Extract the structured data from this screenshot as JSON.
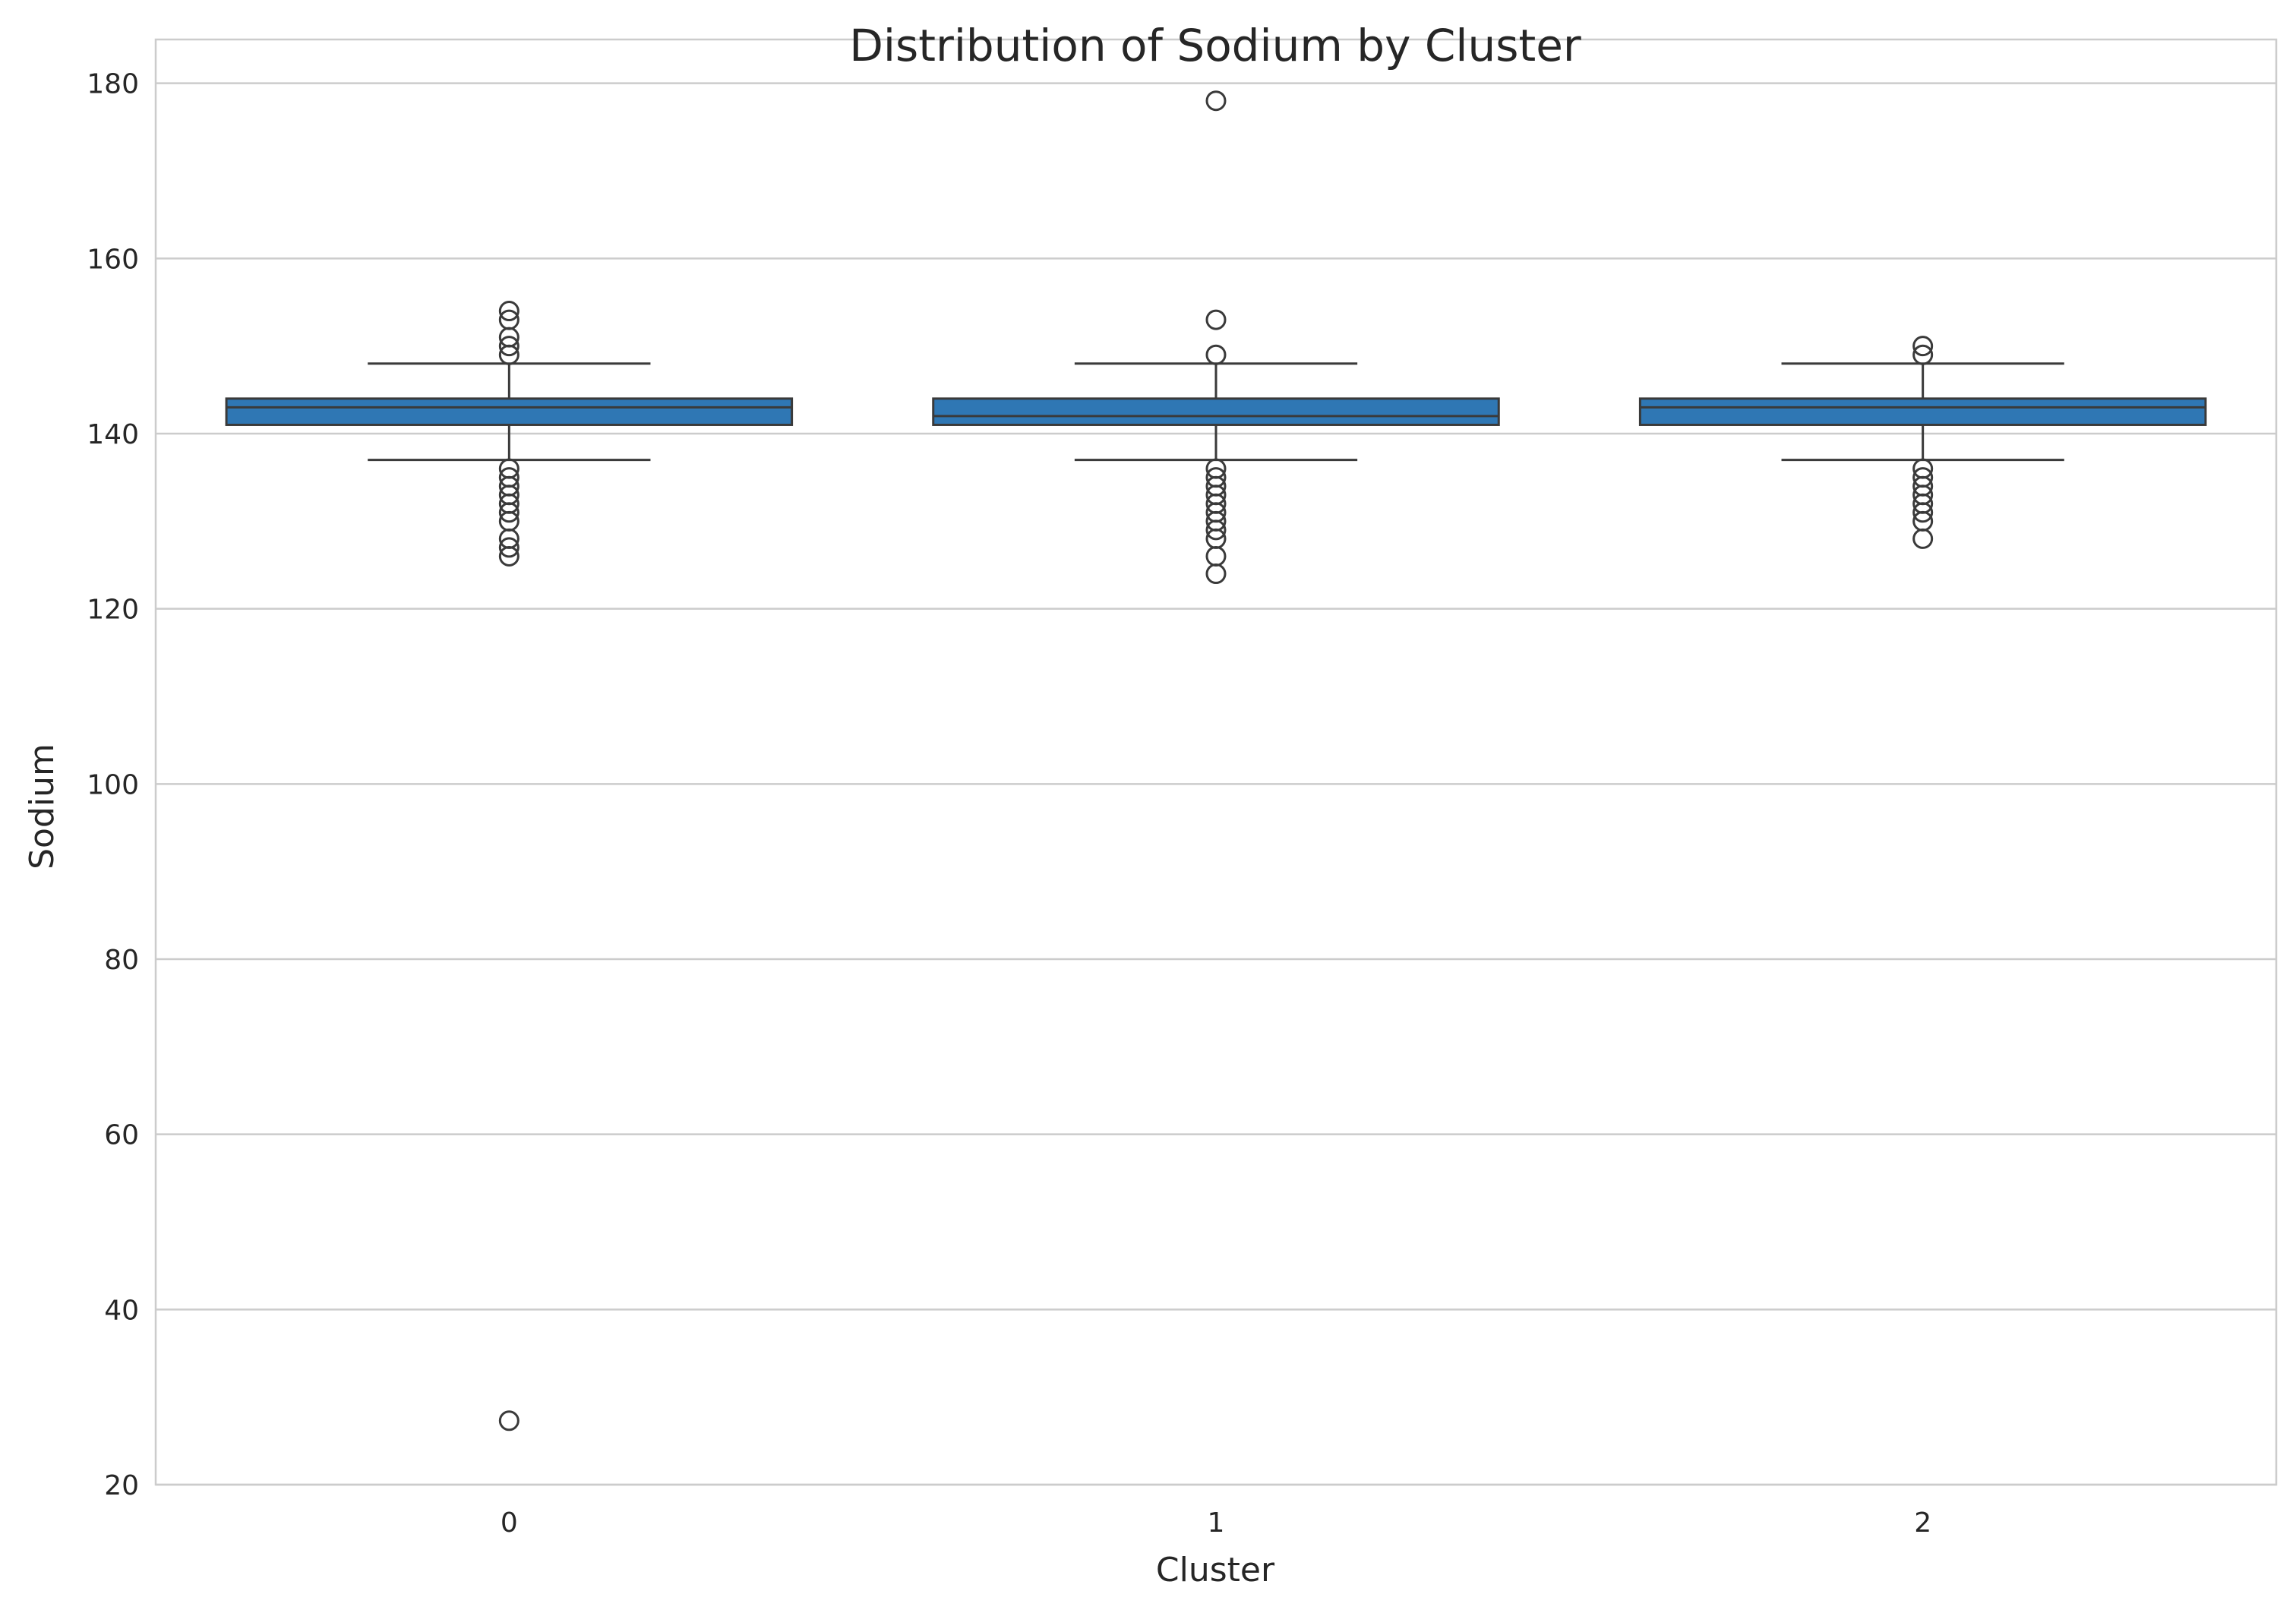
{
  "chart_data": {
    "type": "box",
    "title": "Distribution of Sodium by Cluster",
    "xlabel": "Cluster",
    "ylabel": "Sodium",
    "categories": [
      "0",
      "1",
      "2"
    ],
    "ylim": [
      20,
      185
    ],
    "yticks": [
      20,
      40,
      60,
      80,
      100,
      120,
      140,
      160,
      180
    ],
    "grid": true,
    "box_color": "#2f77b4",
    "line_color": "#3a3a3a",
    "grid_color": "#cccccc",
    "boxes": [
      {
        "category": "0",
        "whisker_low": 137,
        "q1": 141,
        "median": 143,
        "q3": 144,
        "whisker_high": 148,
        "outliers": [
          154,
          153,
          151,
          150,
          149,
          136,
          135,
          134,
          133,
          132,
          131,
          130,
          128,
          127,
          126,
          27.3
        ]
      },
      {
        "category": "1",
        "whisker_low": 137,
        "q1": 141,
        "median": 142,
        "q3": 144,
        "whisker_high": 148,
        "outliers": [
          178,
          153,
          149,
          136,
          135,
          134,
          133,
          132,
          131,
          130,
          129,
          128,
          126,
          124
        ]
      },
      {
        "category": "2",
        "whisker_low": 137,
        "q1": 141,
        "median": 143,
        "q3": 144,
        "whisker_high": 148,
        "outliers": [
          150,
          149,
          136,
          135,
          134,
          133,
          132,
          131,
          130,
          128
        ]
      }
    ]
  }
}
